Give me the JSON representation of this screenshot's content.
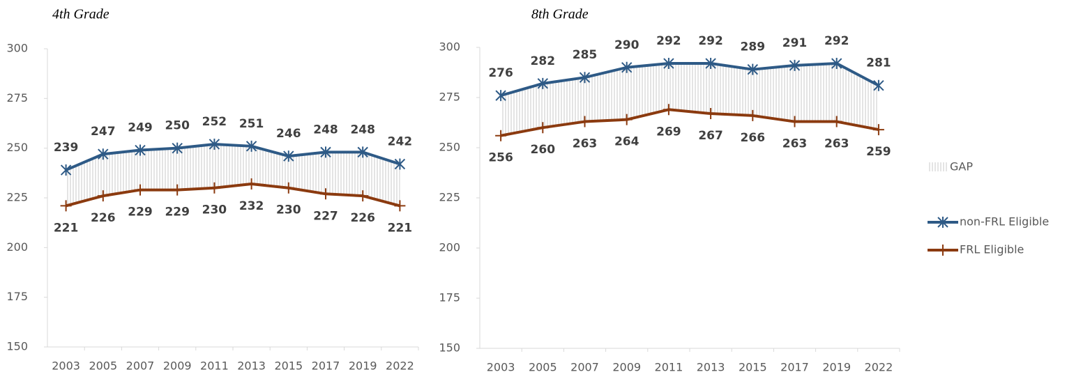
{
  "chart_data": [
    {
      "type": "line",
      "title": "4th Grade",
      "categories": [
        "2003",
        "2005",
        "2007",
        "2009",
        "2011",
        "2013",
        "2015",
        "2017",
        "2019",
        "2022"
      ],
      "series": [
        {
          "name": "non-FRL Eligible",
          "color": "#2e5a86",
          "marker": "asterisk",
          "values": [
            239,
            247,
            249,
            250,
            252,
            251,
            246,
            248,
            248,
            242
          ]
        },
        {
          "name": "FRL Eligible",
          "color": "#8b3a0f",
          "marker": "plus",
          "values": [
            221,
            226,
            229,
            229,
            230,
            232,
            230,
            227,
            226,
            221
          ]
        }
      ],
      "band": {
        "name": "GAP",
        "color": "#c8c8c8"
      },
      "ylim": [
        150,
        300
      ],
      "yticks": [
        150,
        175,
        200,
        225,
        250,
        275,
        300
      ]
    },
    {
      "type": "line",
      "title": "8th Grade",
      "categories": [
        "2003",
        "2005",
        "2007",
        "2009",
        "2011",
        "2013",
        "2015",
        "2017",
        "2019",
        "2022"
      ],
      "series": [
        {
          "name": "non-FRL Eligible",
          "color": "#2e5a86",
          "marker": "asterisk",
          "values": [
            276,
            282,
            285,
            290,
            292,
            292,
            289,
            291,
            292,
            281
          ]
        },
        {
          "name": "FRL Eligible",
          "color": "#8b3a0f",
          "marker": "plus",
          "values": [
            256,
            260,
            263,
            264,
            269,
            267,
            266,
            263,
            263,
            259
          ]
        }
      ],
      "band": {
        "name": "GAP",
        "color": "#c8c8c8"
      },
      "ylim": [
        150,
        300
      ],
      "yticks": [
        150,
        175,
        200,
        225,
        250,
        275,
        300
      ],
      "legend": "right"
    }
  ]
}
